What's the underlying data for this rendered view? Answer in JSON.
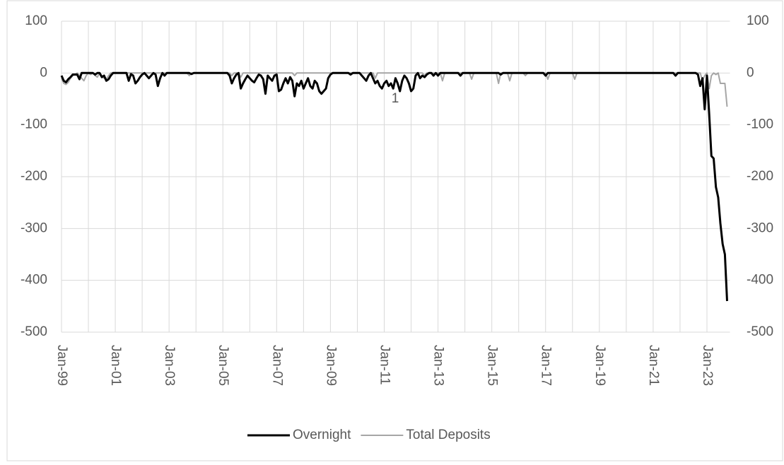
{
  "chart_data": {
    "type": "line",
    "categories": [
      "Jan-99",
      null,
      null,
      null,
      null,
      null,
      null,
      null,
      null,
      null,
      null,
      null,
      null,
      null,
      null,
      null,
      null,
      null,
      null,
      null,
      null,
      null,
      null,
      null,
      "Jan-01",
      null,
      null,
      null,
      null,
      null,
      null,
      null,
      null,
      null,
      null,
      null,
      null,
      null,
      null,
      null,
      null,
      null,
      null,
      null,
      null,
      null,
      null,
      null,
      "Jan-03",
      null,
      null,
      null,
      null,
      null,
      null,
      null,
      null,
      null,
      null,
      null,
      null,
      null,
      null,
      null,
      null,
      null,
      null,
      null,
      null,
      null,
      null,
      null,
      "Jan-05",
      null,
      null,
      null,
      null,
      null,
      null,
      null,
      null,
      null,
      null,
      null,
      null,
      null,
      null,
      null,
      null,
      null,
      null,
      null,
      null,
      null,
      null,
      null,
      "Jan-07",
      null,
      null,
      null,
      null,
      null,
      null,
      null,
      null,
      null,
      null,
      null,
      null,
      null,
      null,
      null,
      null,
      null,
      null,
      null,
      null,
      null,
      null,
      null,
      "Jan-09",
      null,
      null,
      null,
      null,
      null,
      null,
      null,
      null,
      null,
      null,
      null,
      null,
      null,
      null,
      null,
      null,
      null,
      null,
      null,
      null,
      null,
      null,
      null,
      "Jan-11",
      null,
      null,
      null,
      null,
      null,
      null,
      null,
      null,
      null,
      null,
      null,
      null,
      null,
      null,
      null,
      null,
      null,
      null,
      null,
      null,
      null,
      null,
      null,
      "Jan-13",
      null,
      null,
      null,
      null,
      null,
      null,
      null,
      null,
      null,
      null,
      null,
      null,
      null,
      null,
      null,
      null,
      null,
      null,
      null,
      null,
      null,
      null,
      null,
      "Jan-15",
      null,
      null,
      null,
      null,
      null,
      null,
      null,
      null,
      null,
      null,
      null,
      null,
      null,
      null,
      null,
      null,
      null,
      null,
      null,
      null,
      null,
      null,
      null,
      "Jan-17",
      null,
      null,
      null,
      null,
      null,
      null,
      null,
      null,
      null,
      null,
      null,
      null,
      null,
      null,
      null,
      null,
      null,
      null,
      null,
      null,
      null,
      null,
      null,
      "Jan-19",
      null,
      null,
      null,
      null,
      null,
      null,
      null,
      null,
      null,
      null,
      null,
      null,
      null,
      null,
      null,
      null,
      null,
      null,
      null,
      null,
      null,
      null,
      null,
      "Jan-21",
      null,
      null,
      null,
      null,
      null,
      null,
      null,
      null,
      null,
      null,
      null,
      null,
      null,
      null,
      null,
      null,
      null,
      null,
      null,
      null,
      null,
      null,
      null,
      "Jan-23",
      null,
      null,
      null,
      null,
      null,
      null,
      null,
      null,
      null
    ],
    "series": [
      {
        "name": "Overnight",
        "color": "#000000",
        "values": [
          -5,
          -15,
          -18,
          -12,
          -8,
          -3,
          -3,
          -3,
          -12,
          0,
          0,
          0,
          0,
          0,
          0,
          -3,
          0,
          0,
          -8,
          -5,
          -15,
          -12,
          -5,
          0,
          0,
          0,
          0,
          0,
          0,
          0,
          -15,
          -2,
          -5,
          -20,
          -15,
          -8,
          -3,
          0,
          -5,
          -10,
          -5,
          0,
          -3,
          -25,
          -10,
          0,
          -5,
          0,
          0,
          0,
          0,
          0,
          0,
          0,
          0,
          0,
          0,
          0,
          -2,
          0,
          0,
          0,
          0,
          0,
          0,
          0,
          0,
          0,
          0,
          0,
          0,
          0,
          0,
          0,
          0,
          -5,
          -20,
          -10,
          -3,
          0,
          -30,
          -20,
          -12,
          -5,
          -10,
          -15,
          -18,
          -10,
          -3,
          -5,
          -12,
          -40,
          -5,
          -10,
          -15,
          -5,
          -3,
          -35,
          -32,
          -20,
          -10,
          -20,
          -8,
          -15,
          -45,
          -20,
          -25,
          -15,
          -30,
          -20,
          -10,
          -25,
          -30,
          -15,
          -20,
          -35,
          -40,
          -35,
          -30,
          -10,
          -3,
          0,
          0,
          0,
          0,
          0,
          0,
          0,
          0,
          -3,
          0,
          0,
          0,
          0,
          -5,
          -10,
          -15,
          -5,
          0,
          -10,
          -20,
          -15,
          -25,
          -30,
          -20,
          -15,
          -25,
          -20,
          -30,
          -10,
          -20,
          -35,
          -15,
          -5,
          -10,
          -20,
          -35,
          -30,
          -5,
          0,
          -10,
          -5,
          -8,
          -3,
          0,
          0,
          -5,
          0,
          -5,
          0,
          0,
          0,
          0,
          0,
          0,
          0,
          0,
          0,
          -5,
          0,
          0,
          0,
          0,
          0,
          0,
          0,
          0,
          0,
          0,
          0,
          0,
          0,
          0,
          0,
          0,
          0,
          -3,
          0,
          0,
          0,
          0,
          0,
          0,
          0,
          0,
          0,
          0,
          0,
          0,
          0,
          0,
          0,
          0,
          0,
          0,
          0,
          -5,
          0,
          0,
          0,
          0,
          0,
          0,
          0,
          0,
          0,
          0,
          0,
          0,
          0,
          0,
          0,
          0,
          0,
          0,
          0,
          0,
          0,
          0,
          0,
          0,
          0,
          0,
          0,
          0,
          0,
          0,
          0,
          0,
          0,
          0,
          0,
          0,
          0,
          0,
          0,
          0,
          0,
          0,
          0,
          0,
          0,
          0,
          0,
          0,
          0,
          0,
          0,
          0,
          0,
          0,
          0,
          0,
          0,
          -5,
          0,
          0,
          0,
          0,
          0,
          0,
          0,
          0,
          0,
          -3,
          -25,
          -10,
          -70,
          -5,
          -80,
          -160,
          -165,
          -220,
          -240,
          -290,
          -330,
          -350,
          -440
        ]
      },
      {
        "name": "Total Deposits",
        "color": "#a6a6a6",
        "values": [
          -10,
          -20,
          -22,
          -18,
          -10,
          -5,
          -3,
          0,
          -5,
          -10,
          -15,
          -5,
          0,
          -3,
          0,
          -5,
          -8,
          0,
          -5,
          -10,
          -12,
          -5,
          0,
          0,
          0,
          0,
          0,
          0,
          0,
          0,
          0,
          0,
          0,
          0,
          0,
          0,
          0,
          0,
          0,
          0,
          0,
          0,
          0,
          0,
          0,
          0,
          0,
          0,
          0,
          0,
          0,
          0,
          0,
          0,
          0,
          0,
          0,
          -5,
          0,
          0,
          0,
          0,
          0,
          0,
          0,
          0,
          0,
          0,
          0,
          0,
          0,
          0,
          0,
          0,
          0,
          0,
          -5,
          0,
          0,
          0,
          -8,
          0,
          0,
          0,
          0,
          0,
          0,
          0,
          0,
          0,
          0,
          0,
          0,
          0,
          0,
          0,
          0,
          0,
          0,
          0,
          0,
          0,
          0,
          0,
          -5,
          0,
          0,
          0,
          0,
          0,
          0,
          0,
          0,
          0,
          0,
          0,
          0,
          0,
          0,
          0,
          0,
          0,
          0,
          0,
          0,
          0,
          0,
          0,
          0,
          0,
          0,
          0,
          0,
          0,
          0,
          0,
          0,
          0,
          0,
          0,
          -10,
          0,
          0,
          0,
          0,
          0,
          0,
          0,
          0,
          0,
          0,
          0,
          0,
          0,
          0,
          0,
          0,
          0,
          0,
          0,
          0,
          0,
          -5,
          0,
          0,
          0,
          0,
          0,
          0,
          0,
          -15,
          0,
          0,
          0,
          0,
          0,
          0,
          0,
          0,
          0,
          0,
          0,
          0,
          -12,
          0,
          0,
          0,
          0,
          0,
          0,
          0,
          0,
          0,
          0,
          0,
          -20,
          0,
          0,
          0,
          0,
          -15,
          0,
          0,
          0,
          0,
          0,
          0,
          -5,
          0,
          0,
          0,
          0,
          0,
          0,
          0,
          0,
          0,
          -12,
          0,
          0,
          0,
          0,
          0,
          0,
          0,
          0,
          0,
          0,
          0,
          -12,
          0,
          0,
          0,
          0,
          0,
          0,
          0,
          0,
          0,
          0,
          0,
          0,
          0,
          0,
          0,
          0,
          0,
          0,
          0,
          0,
          0,
          0,
          0,
          0,
          0,
          0,
          0,
          0,
          0,
          0,
          0,
          0,
          0,
          0,
          0,
          0,
          0,
          0,
          0,
          0,
          0,
          0,
          0,
          0,
          0,
          0,
          0,
          0,
          0,
          0,
          0,
          0,
          0,
          0,
          0,
          0,
          -15,
          -5,
          0,
          -30,
          -5,
          0,
          -3,
          0,
          -20,
          -20,
          -20,
          -65
        ]
      }
    ],
    "ylim": [
      -500,
      100
    ],
    "yticks": [
      100,
      0,
      -100,
      -200,
      -300,
      -400,
      -500
    ],
    "y2lim": [
      -500,
      100
    ],
    "y2ticks": [
      100,
      0,
      -100,
      -200,
      -300,
      -400,
      -500
    ],
    "grid": true,
    "legend": "bottom",
    "annotations": [
      "1"
    ]
  }
}
